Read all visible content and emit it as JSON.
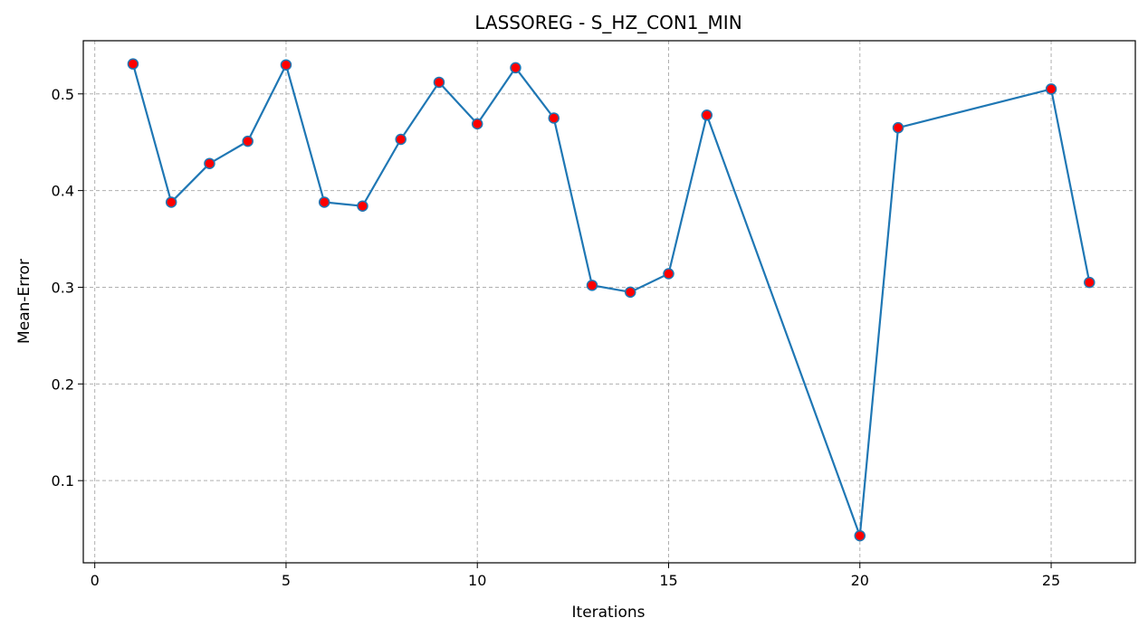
{
  "chart_data": {
    "type": "line",
    "title": "LASSOREG - S_HZ_CON1_MIN",
    "xlabel": "Iterations",
    "ylabel": "Mean-Error",
    "xlim": [
      -0.3,
      27.2
    ],
    "ylim": [
      0.015,
      0.555
    ],
    "xticks": [
      0,
      5,
      10,
      15,
      20,
      25
    ],
    "yticks": [
      0.1,
      0.2,
      0.3,
      0.4,
      0.5
    ],
    "grid": true,
    "line_color": "#1f77b4",
    "marker_face_color": "#ff0000",
    "marker_edge_color": "#1f77b4",
    "series": [
      {
        "x": [
          1,
          2,
          3,
          4,
          5,
          6,
          7,
          8,
          9,
          10,
          11,
          12,
          13,
          14,
          15,
          16,
          20,
          21,
          25,
          26
        ],
        "values": [
          0.531,
          0.388,
          0.428,
          0.451,
          0.53,
          0.388,
          0.384,
          0.453,
          0.512,
          0.469,
          0.527,
          0.475,
          0.302,
          0.295,
          0.314,
          0.478,
          0.043,
          0.465,
          0.505,
          0.305
        ]
      }
    ]
  }
}
